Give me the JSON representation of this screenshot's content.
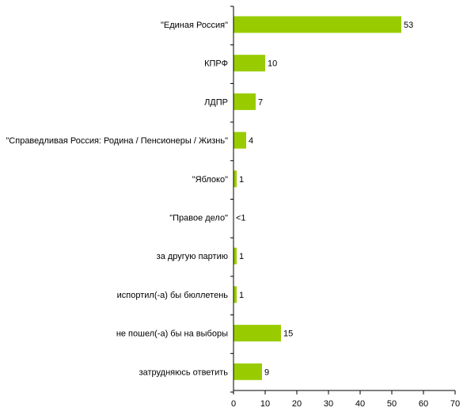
{
  "chart_data": {
    "type": "bar",
    "orientation": "horizontal",
    "categories": [
      "\"Единая Россия\"",
      "КПРФ",
      "ЛДПР",
      "\"Справедливая Россия: Родина / Пенсионеры / Жизнь\"",
      "\"Яблоко\"",
      "\"Правое дело\"",
      "за другую партию",
      "испортил(-а) бы бюллетень",
      "не пошел(-а) бы на выборы",
      "затрудняюсь ответить"
    ],
    "values": [
      53,
      10,
      7,
      4,
      1,
      0.3,
      1,
      1,
      15,
      9
    ],
    "value_labels": [
      "53",
      "10",
      "7",
      "4",
      "1",
      "<1",
      "1",
      "1",
      "15",
      "9"
    ],
    "xlim": [
      0,
      70
    ],
    "xticks": [
      0,
      10,
      20,
      30,
      40,
      50,
      60,
      70
    ],
    "grid": false,
    "title": "",
    "xlabel": "",
    "ylabel": ""
  },
  "colors": {
    "bar": "#99cc00",
    "bar_stroke": "#000000",
    "axis": "#000000"
  }
}
